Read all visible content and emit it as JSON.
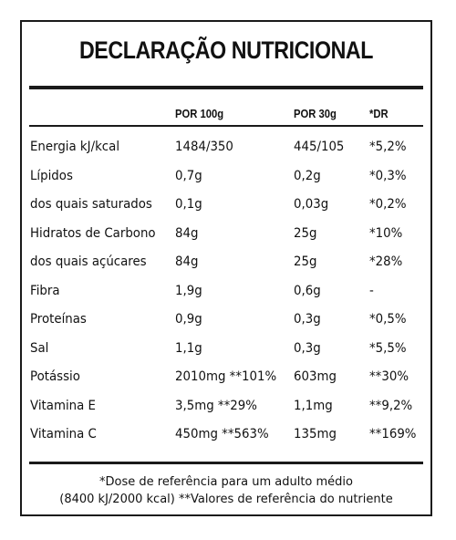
{
  "title": "DECLARAÇÃO NUTRICIONAL",
  "columns": {
    "per100": "POR 100g",
    "per30": "POR 30g",
    "dr": "*DR"
  },
  "rows": [
    {
      "name": "Energia kJ/kcal",
      "per100": "1484/350",
      "per30": "445/105",
      "dr": "*5,2%"
    },
    {
      "name": "Lípidos",
      "per100": "0,7g",
      "per30": "0,2g",
      "dr": "*0,3%"
    },
    {
      "name": "dos quais saturados",
      "per100": "0,1g",
      "per30": "0,03g",
      "dr": "*0,2%"
    },
    {
      "name": "Hidratos de Carbono",
      "per100": "84g",
      "per30": "25g",
      "dr": "*10%"
    },
    {
      "name": "dos quais açúcares",
      "per100": "84g",
      "per30": "25g",
      "dr": "*28%"
    },
    {
      "name": "Fibra",
      "per100": "1,9g",
      "per30": "0,6g",
      "dr": "-"
    },
    {
      "name": "Proteínas",
      "per100": "0,9g",
      "per30": "0,3g",
      "dr": "*0,5%"
    },
    {
      "name": "Sal",
      "per100": "1,1g",
      "per30": "0,3g",
      "dr": "*5,5%"
    },
    {
      "name": "Potássio",
      "per100": "2010mg **101%",
      "per30": "603mg",
      "dr": "**30%"
    },
    {
      "name": "Vitamina E",
      "per100": "3,5mg **29%",
      "per30": "1,1mg",
      "dr": "**9,2%"
    },
    {
      "name": "Vitamina C",
      "per100": "450mg **563%",
      "per30": "135mg",
      "dr": "**169%"
    }
  ],
  "footnote": {
    "line1": "*Dose de referência para um adulto médio",
    "line2": "(8400 kJ/2000 kcal) **Valores de referência do nutriente"
  }
}
